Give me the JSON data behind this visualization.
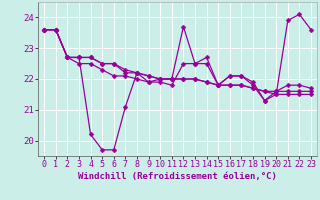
{
  "xlabel": "Windchill (Refroidissement éolien,°C)",
  "ylabel": "",
  "background_color": "#cceee8",
  "line_color": "#990099",
  "grid_color": "#ffffff",
  "xlim": [
    -0.5,
    23.5
  ],
  "ylim": [
    19.5,
    24.5
  ],
  "xticks": [
    0,
    1,
    2,
    3,
    4,
    5,
    6,
    7,
    8,
    9,
    10,
    11,
    12,
    13,
    14,
    15,
    16,
    17,
    18,
    19,
    20,
    21,
    22,
    23
  ],
  "yticks": [
    20,
    21,
    22,
    23,
    24
  ],
  "series": [
    [
      23.6,
      23.6,
      22.7,
      22.7,
      20.2,
      19.7,
      19.7,
      21.1,
      22.2,
      21.9,
      22.0,
      22.0,
      23.7,
      22.5,
      22.7,
      21.8,
      22.1,
      22.1,
      21.8,
      21.3,
      21.5,
      23.9,
      24.1,
      23.6
    ],
    [
      23.6,
      23.6,
      22.7,
      22.7,
      22.7,
      22.5,
      22.5,
      22.3,
      22.2,
      22.1,
      22.0,
      22.0,
      22.0,
      22.0,
      21.9,
      21.8,
      21.8,
      21.8,
      21.7,
      21.6,
      21.6,
      21.6,
      21.6,
      21.6
    ],
    [
      23.6,
      23.6,
      22.7,
      22.7,
      22.7,
      22.5,
      22.5,
      22.2,
      22.2,
      22.1,
      22.0,
      22.0,
      22.0,
      22.0,
      21.9,
      21.8,
      21.8,
      21.8,
      21.7,
      21.6,
      21.5,
      21.5,
      21.5,
      21.5
    ],
    [
      23.6,
      23.6,
      22.7,
      22.5,
      22.5,
      22.3,
      22.1,
      22.1,
      22.0,
      21.9,
      21.9,
      21.8,
      22.5,
      22.5,
      22.5,
      21.8,
      22.1,
      22.1,
      21.9,
      21.3,
      21.6,
      21.8,
      21.8,
      21.7
    ]
  ],
  "tick_fontsize": 6,
  "xlabel_fontsize": 6.5,
  "marker_size": 2.5,
  "linewidth": 0.9
}
